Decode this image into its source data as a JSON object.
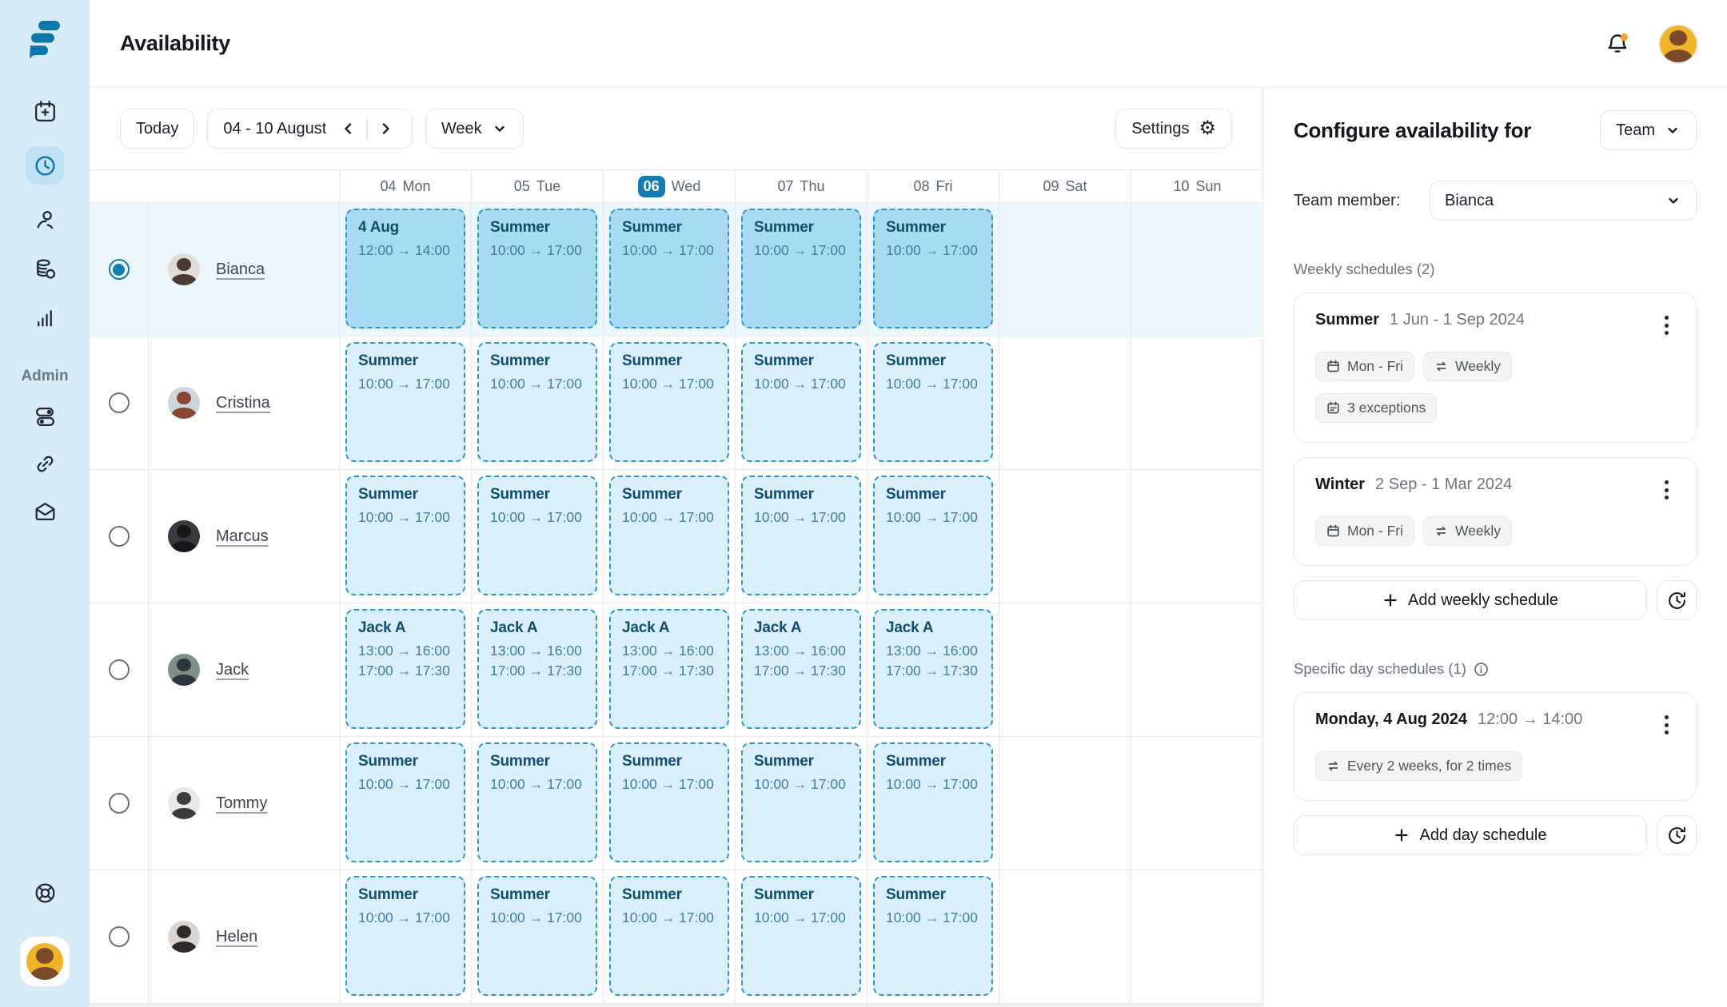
{
  "header": {
    "title": "Availability"
  },
  "sidebar": {
    "admin_label": "Admin",
    "icons_top": [
      "calendar-plus-icon",
      "clock-icon",
      "clients-icon",
      "payments-icon",
      "reports-icon"
    ],
    "active_icon": "clock-icon",
    "icons_admin": [
      "settings-toggles-icon",
      "link-icon",
      "mail-icon"
    ],
    "icons_bottom": [
      "help-lifebuoy-icon",
      "workspace-avatar"
    ]
  },
  "toolbar": {
    "today_label": "Today",
    "date_range": "04 - 10 August",
    "view_label": "Week",
    "settings_label": "Settings"
  },
  "calendar": {
    "days": [
      {
        "date": "04",
        "day": "Mon",
        "selected": false
      },
      {
        "date": "05",
        "day": "Tue",
        "selected": false
      },
      {
        "date": "06",
        "day": "Wed",
        "selected": true
      },
      {
        "date": "07",
        "day": "Thu",
        "selected": false
      },
      {
        "date": "08",
        "day": "Fri",
        "selected": false
      },
      {
        "date": "09",
        "day": "Sat",
        "selected": false
      },
      {
        "date": "10",
        "day": "Sun",
        "selected": false
      }
    ],
    "rows": [
      {
        "name": "Bianca",
        "selected": true,
        "avatar": {
          "bg": "#e0dbd6",
          "fg": "#4a3a31"
        },
        "cells": [
          {
            "title": "4 Aug",
            "times": [
              "12:00 → 14:00"
            ]
          },
          {
            "title": "Summer",
            "times": [
              "10:00 → 17:00"
            ]
          },
          {
            "title": "Summer",
            "times": [
              "10:00 → 17:00"
            ]
          },
          {
            "title": "Summer",
            "times": [
              "10:00 → 17:00"
            ]
          },
          {
            "title": "Summer",
            "times": [
              "10:00 → 17:00"
            ]
          },
          null,
          null
        ]
      },
      {
        "name": "Cristina",
        "selected": false,
        "avatar": {
          "bg": "#ccd6dc",
          "fg": "#8a4632"
        },
        "cells": [
          {
            "title": "Summer",
            "times": [
              "10:00 → 17:00"
            ]
          },
          {
            "title": "Summer",
            "times": [
              "10:00 → 17:00"
            ]
          },
          {
            "title": "Summer",
            "times": [
              "10:00 → 17:00"
            ]
          },
          {
            "title": "Summer",
            "times": [
              "10:00 → 17:00"
            ]
          },
          {
            "title": "Summer",
            "times": [
              "10:00 → 17:00"
            ]
          },
          null,
          null
        ]
      },
      {
        "name": "Marcus",
        "selected": false,
        "avatar": {
          "bg": "#3a3a3e",
          "fg": "#17171a"
        },
        "cells": [
          {
            "title": "Summer",
            "times": [
              "10:00 → 17:00"
            ]
          },
          {
            "title": "Summer",
            "times": [
              "10:00 → 17:00"
            ]
          },
          {
            "title": "Summer",
            "times": [
              "10:00 → 17:00"
            ]
          },
          {
            "title": "Summer",
            "times": [
              "10:00 → 17:00"
            ]
          },
          {
            "title": "Summer",
            "times": [
              "10:00 → 17:00"
            ]
          },
          null,
          null
        ]
      },
      {
        "name": "Jack",
        "selected": false,
        "avatar": {
          "bg": "#7e8f86",
          "fg": "#2d3440"
        },
        "cells": [
          {
            "title": "Jack A",
            "times": [
              "13:00 → 16:00",
              "17:00 → 17:30"
            ]
          },
          {
            "title": "Jack A",
            "times": [
              "13:00 → 16:00",
              "17:00 → 17:30"
            ]
          },
          {
            "title": "Jack A",
            "times": [
              "13:00 → 16:00",
              "17:00 → 17:30"
            ]
          },
          {
            "title": "Jack A",
            "times": [
              "13:00 → 16:00",
              "17:00 → 17:30"
            ]
          },
          {
            "title": "Jack A",
            "times": [
              "13:00 → 16:00",
              "17:00 → 17:30"
            ]
          },
          null,
          null
        ]
      },
      {
        "name": "Tommy",
        "selected": false,
        "avatar": {
          "bg": "#e8e8e8",
          "fg": "#3c3c3c"
        },
        "cells": [
          {
            "title": "Summer",
            "times": [
              "10:00 → 17:00"
            ]
          },
          {
            "title": "Summer",
            "times": [
              "10:00 → 17:00"
            ]
          },
          {
            "title": "Summer",
            "times": [
              "10:00 → 17:00"
            ]
          },
          {
            "title": "Summer",
            "times": [
              "10:00 → 17:00"
            ]
          },
          {
            "title": "Summer",
            "times": [
              "10:00 → 17:00"
            ]
          },
          null,
          null
        ]
      },
      {
        "name": "Helen",
        "selected": false,
        "avatar": {
          "bg": "#d9d5d2",
          "fg": "#2f2a28"
        },
        "cells": [
          {
            "title": "Summer",
            "times": [
              "10:00 → 17:00"
            ]
          },
          {
            "title": "Summer",
            "times": [
              "10:00 → 17:00"
            ]
          },
          {
            "title": "Summer",
            "times": [
              "10:00 → 17:00"
            ]
          },
          {
            "title": "Summer",
            "times": [
              "10:00 → 17:00"
            ]
          },
          {
            "title": "Summer",
            "times": [
              "10:00 → 17:00"
            ]
          },
          null,
          null
        ]
      }
    ]
  },
  "panel": {
    "heading": "Configure availability for",
    "scope_label": "Team",
    "member_label": "Team member:",
    "member_value": "Bianca",
    "weekly_label": "Weekly schedules (2)",
    "weekly_cards": [
      {
        "name": "Summer",
        "range": "1 Jun - 1 Sep 2024",
        "chip_rows": [
          [
            {
              "icon": "calendar",
              "label": "Mon - Fri"
            },
            {
              "icon": "repeat",
              "label": "Weekly"
            }
          ],
          [
            {
              "icon": "calendar-exception",
              "label": "3 exceptions"
            }
          ]
        ]
      },
      {
        "name": "Winter",
        "range": "2 Sep - 1 Mar 2024",
        "chip_rows": [
          [
            {
              "icon": "calendar",
              "label": "Mon - Fri"
            },
            {
              "icon": "repeat",
              "label": "Weekly"
            }
          ]
        ]
      }
    ],
    "add_weekly_label": "Add weekly schedule",
    "specific_label": "Specific day schedules (1)",
    "specific_cards": [
      {
        "name": "Monday, 4 Aug 2024",
        "range": "12:00 → 14:00",
        "chip_rows": [
          [
            {
              "icon": "repeat",
              "label": "Every 2 weeks, for 2 times"
            }
          ]
        ]
      }
    ],
    "add_day_label": "Add day schedule"
  },
  "colors": {
    "accent_blue": "#0f77a9",
    "selected_day_badge": "#147cb0",
    "sidebar_bg": "#d7ecf9",
    "active_nav_bg": "#bee1f5",
    "selected_row_bg": "#ebf6fd",
    "block_fill_selected": "#a7daf3",
    "block_fill": "#d9effb",
    "block_dash_border": "#2f93c5",
    "block_title_text": "#114e6d",
    "block_time_text": "#417d9f",
    "notification_dot": "#f2a626",
    "profile_avatar_bg": "#f0b429"
  }
}
